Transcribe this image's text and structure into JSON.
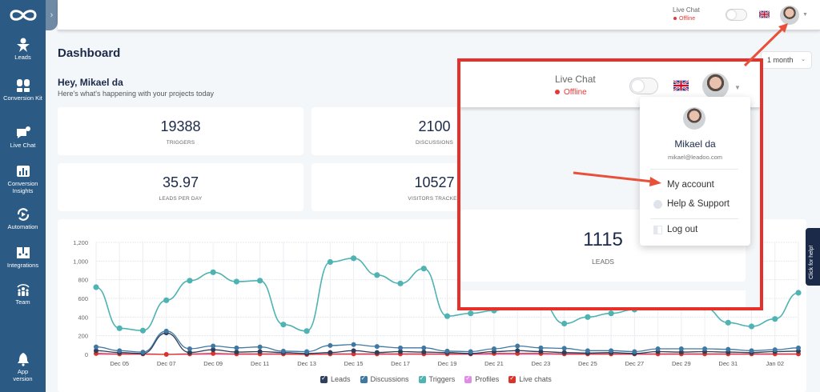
{
  "sidebar": {
    "items": [
      {
        "label": "Leads",
        "icon": "star-person-icon"
      },
      {
        "label": "Conversion Kit",
        "icon": "conversion-kit-icon"
      },
      {
        "label": "Live Chat",
        "icon": "chat-bubble-icon"
      },
      {
        "label": "Conversion Insights",
        "icon": "bar-chart-icon"
      },
      {
        "label": "Automation",
        "icon": "automation-refresh-icon"
      },
      {
        "label": "Integrations",
        "icon": "integrations-icon"
      },
      {
        "label": "Team",
        "icon": "team-icon"
      },
      {
        "label": "App version",
        "icon": "bell-icon"
      }
    ]
  },
  "topbar": {
    "live_chat_label": "Live Chat",
    "status": "Offline",
    "language": "English (UK)"
  },
  "header": {
    "title": "Dashboard",
    "greeting": "Hey, Mikael da",
    "subtitle": "Here's what's happening with your projects today",
    "period": "1 month"
  },
  "stats": [
    {
      "value": "19388",
      "label": "TRIGGERS"
    },
    {
      "value": "2100",
      "label": "DISCUSSIONS"
    },
    {
      "value": "35.97",
      "label": "LEADS PER DAY"
    },
    {
      "value": "10527",
      "label": "VISITORS TRACKED"
    },
    {
      "value": "1115",
      "label": "LEADS"
    }
  ],
  "user_menu": {
    "name": "Mikael da",
    "email": "mikael@leadoo.com",
    "items": [
      {
        "label": "My account"
      },
      {
        "label": "Help & Support"
      },
      {
        "label": "Log out"
      }
    ]
  },
  "help_tab": "Click for help!",
  "colors": {
    "sidebar": "#2b5a84",
    "highlight": "#e8302a",
    "leads": "#2e3f5c",
    "discussions": "#3f78a0",
    "triggers": "#4fb3b3",
    "profiles": "#e08be8",
    "live_chats": "#d9342b"
  },
  "chart_data": {
    "type": "line",
    "title": "",
    "xlabel": "",
    "ylabel": "",
    "ylim": [
      0,
      1200
    ],
    "yticks": [
      "0",
      "200",
      "400",
      "600",
      "800",
      "1,000",
      "1,200"
    ],
    "x": [
      "Dec 04",
      "Dec 05",
      "Dec 06",
      "Dec 07",
      "Dec 08",
      "Dec 09",
      "Dec 10",
      "Dec 11",
      "Dec 12",
      "Dec 13",
      "Dec 14",
      "Dec 15",
      "Dec 16",
      "Dec 17",
      "Dec 18",
      "Dec 19",
      "Dec 20",
      "Dec 21",
      "Dec 22",
      "Dec 23",
      "Dec 24",
      "Dec 25",
      "Dec 26",
      "Dec 27",
      "Dec 28",
      "Dec 29",
      "Dec 30",
      "Dec 31",
      "Jan 01",
      "Jan 02",
      "Jan 03"
    ],
    "xticks": [
      "Dec 05",
      "Dec 07",
      "Dec 09",
      "Dec 11",
      "Dec 13",
      "Dec 15",
      "Dec 17",
      "Dec 19",
      "Dec 21",
      "Dec 23",
      "Dec 25",
      "Dec 27",
      "Dec 29",
      "Dec 31",
      "Jan 02"
    ],
    "grid": true,
    "legend_position": "bottom",
    "series": [
      {
        "name": "Leads",
        "values": [
          40,
          20,
          10,
          230,
          20,
          50,
          25,
          30,
          20,
          10,
          20,
          40,
          20,
          30,
          25,
          20,
          10,
          30,
          40,
          30,
          20,
          15,
          20,
          10,
          30,
          25,
          30,
          25,
          20,
          30,
          35
        ]
      },
      {
        "name": "Discussions",
        "values": [
          80,
          40,
          25,
          250,
          60,
          90,
          70,
          80,
          35,
          30,
          95,
          105,
          85,
          70,
          70,
          35,
          30,
          60,
          90,
          70,
          65,
          40,
          40,
          30,
          60,
          60,
          60,
          55,
          40,
          50,
          70
        ]
      },
      {
        "name": "Triggers",
        "values": [
          720,
          280,
          255,
          580,
          790,
          880,
          780,
          790,
          320,
          250,
          990,
          1030,
          850,
          760,
          920,
          410,
          440,
          470,
          540,
          560,
          330,
          400,
          440,
          480,
          600,
          660,
          500,
          340,
          300,
          380,
          660
        ]
      },
      {
        "name": "Profiles",
        "values": [
          0,
          0,
          0,
          0,
          0,
          0,
          0,
          0,
          0,
          0,
          0,
          0,
          0,
          0,
          0,
          0,
          0,
          0,
          0,
          0,
          0,
          0,
          0,
          0,
          0,
          0,
          0,
          0,
          0,
          0,
          0
        ]
      },
      {
        "name": "Live chats",
        "values": [
          10,
          5,
          5,
          0,
          5,
          10,
          5,
          5,
          5,
          0,
          5,
          5,
          5,
          5,
          5,
          5,
          5,
          10,
          10,
          10,
          5,
          5,
          5,
          5,
          5,
          5,
          5,
          5,
          5,
          5,
          5
        ]
      }
    ]
  }
}
